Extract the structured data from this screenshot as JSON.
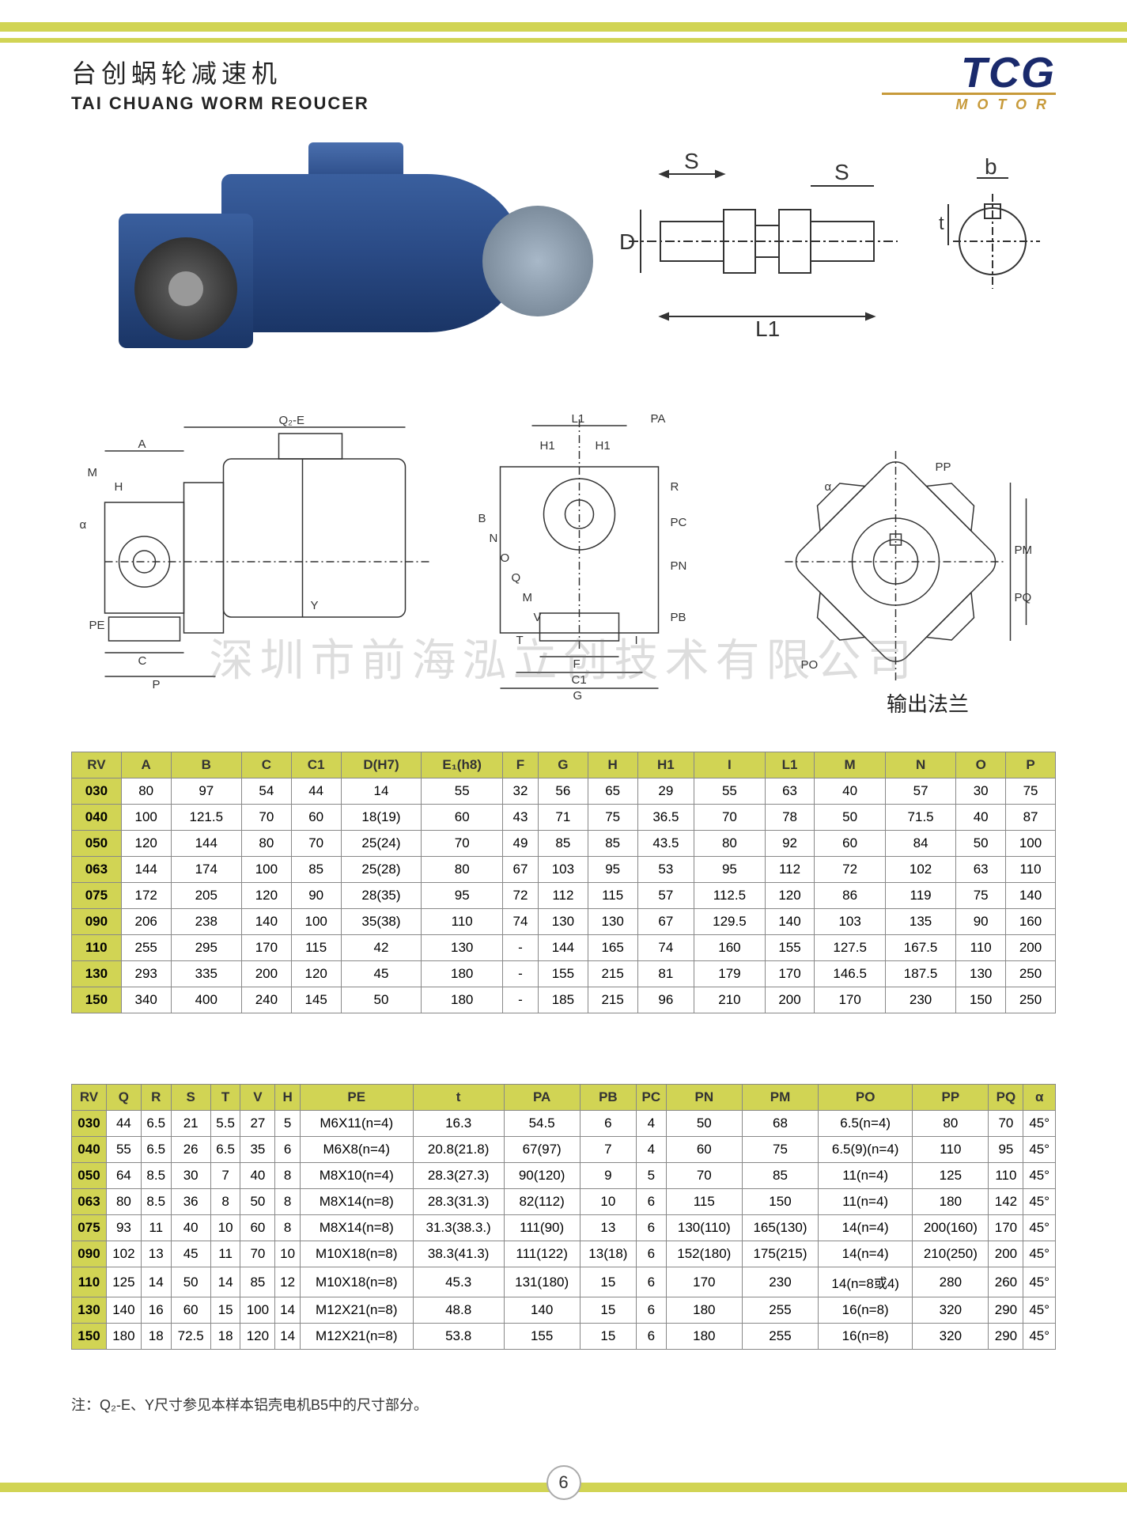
{
  "header": {
    "title_cn": "台创蜗轮减速机",
    "title_en": "TAI CHUANG WORM REOUCER",
    "logo_main": "TCG",
    "logo_sub": "MOTOR"
  },
  "colors": {
    "accent_yellow": "#d1d454",
    "logo_blue": "#1a2a6c",
    "logo_gold": "#c79a3a",
    "motor_blue": "#2a4a85",
    "border": "#888",
    "watermark": "rgba(120,120,120,0.25)"
  },
  "shaft_labels": {
    "S": "S",
    "D": "D",
    "L1": "L1",
    "b": "b",
    "t": "t"
  },
  "drawing_labels": {
    "Q2E": "Q₂-E",
    "A": "A",
    "M": "M",
    "H": "H",
    "Y": "Y",
    "PE": "PE",
    "C": "C",
    "P": "P",
    "alpha": "α",
    "L1": "L1",
    "PA": "PA",
    "H1": "H1",
    "R": "R",
    "B": "B",
    "N": "N",
    "O": "O",
    "Q": "Q",
    "V": "V",
    "PB": "PB",
    "PC": "PC",
    "PN": "PN",
    "F": "F",
    "C1": "C1",
    "G": "G",
    "T": "T",
    "I": "I",
    "PP": "PP",
    "PM": "PM",
    "PQ": "PQ",
    "PO": "PO",
    "flange_label": "输出法兰"
  },
  "watermark": "深圳市前海泓立创技术有限公司",
  "table1": {
    "columns": [
      "RV",
      "A",
      "B",
      "C",
      "C1",
      "D(H7)",
      "E₁(h8)",
      "F",
      "G",
      "H",
      "H1",
      "I",
      "L1",
      "M",
      "N",
      "O",
      "P"
    ],
    "rows": [
      [
        "030",
        "80",
        "97",
        "54",
        "44",
        "14",
        "55",
        "32",
        "56",
        "65",
        "29",
        "55",
        "63",
        "40",
        "57",
        "30",
        "75"
      ],
      [
        "040",
        "100",
        "121.5",
        "70",
        "60",
        "18(19)",
        "60",
        "43",
        "71",
        "75",
        "36.5",
        "70",
        "78",
        "50",
        "71.5",
        "40",
        "87"
      ],
      [
        "050",
        "120",
        "144",
        "80",
        "70",
        "25(24)",
        "70",
        "49",
        "85",
        "85",
        "43.5",
        "80",
        "92",
        "60",
        "84",
        "50",
        "100"
      ],
      [
        "063",
        "144",
        "174",
        "100",
        "85",
        "25(28)",
        "80",
        "67",
        "103",
        "95",
        "53",
        "95",
        "112",
        "72",
        "102",
        "63",
        "110"
      ],
      [
        "075",
        "172",
        "205",
        "120",
        "90",
        "28(35)",
        "95",
        "72",
        "112",
        "115",
        "57",
        "112.5",
        "120",
        "86",
        "119",
        "75",
        "140"
      ],
      [
        "090",
        "206",
        "238",
        "140",
        "100",
        "35(38)",
        "110",
        "74",
        "130",
        "130",
        "67",
        "129.5",
        "140",
        "103",
        "135",
        "90",
        "160"
      ],
      [
        "110",
        "255",
        "295",
        "170",
        "115",
        "42",
        "130",
        "-",
        "144",
        "165",
        "74",
        "160",
        "155",
        "127.5",
        "167.5",
        "110",
        "200"
      ],
      [
        "130",
        "293",
        "335",
        "200",
        "120",
        "45",
        "180",
        "-",
        "155",
        "215",
        "81",
        "179",
        "170",
        "146.5",
        "187.5",
        "130",
        "250"
      ],
      [
        "150",
        "340",
        "400",
        "240",
        "145",
        "50",
        "180",
        "-",
        "185",
        "215",
        "96",
        "210",
        "200",
        "170",
        "230",
        "150",
        "250"
      ]
    ]
  },
  "table2": {
    "columns": [
      "RV",
      "Q",
      "R",
      "S",
      "T",
      "V",
      "H",
      "PE",
      "t",
      "PA",
      "PB",
      "PC",
      "PN",
      "PM",
      "PO",
      "PP",
      "PQ",
      "α"
    ],
    "rows": [
      [
        "030",
        "44",
        "6.5",
        "21",
        "5.5",
        "27",
        "5",
        "M6X11(n=4)",
        "16.3",
        "54.5",
        "6",
        "4",
        "50",
        "68",
        "6.5(n=4)",
        "80",
        "70",
        "45°"
      ],
      [
        "040",
        "55",
        "6.5",
        "26",
        "6.5",
        "35",
        "6",
        "M6X8(n=4)",
        "20.8(21.8)",
        "67(97)",
        "7",
        "4",
        "60",
        "75",
        "6.5(9)(n=4)",
        "110",
        "95",
        "45°"
      ],
      [
        "050",
        "64",
        "8.5",
        "30",
        "7",
        "40",
        "8",
        "M8X10(n=4)",
        "28.3(27.3)",
        "90(120)",
        "9",
        "5",
        "70",
        "85",
        "11(n=4)",
        "125",
        "110",
        "45°"
      ],
      [
        "063",
        "80",
        "8.5",
        "36",
        "8",
        "50",
        "8",
        "M8X14(n=8)",
        "28.3(31.3)",
        "82(112)",
        "10",
        "6",
        "115",
        "150",
        "11(n=4)",
        "180",
        "142",
        "45°"
      ],
      [
        "075",
        "93",
        "11",
        "40",
        "10",
        "60",
        "8",
        "M8X14(n=8)",
        "31.3(38.3.)",
        "111(90)",
        "13",
        "6",
        "130(110)",
        "165(130)",
        "14(n=4)",
        "200(160)",
        "170",
        "45°"
      ],
      [
        "090",
        "102",
        "13",
        "45",
        "11",
        "70",
        "10",
        "M10X18(n=8)",
        "38.3(41.3)",
        "111(122)",
        "13(18)",
        "6",
        "152(180)",
        "175(215)",
        "14(n=4)",
        "210(250)",
        "200",
        "45°"
      ],
      [
        "110",
        "125",
        "14",
        "50",
        "14",
        "85",
        "12",
        "M10X18(n=8)",
        "45.3",
        "131(180)",
        "15",
        "6",
        "170",
        "230",
        "14(n=8或4)",
        "280",
        "260",
        "45°"
      ],
      [
        "130",
        "140",
        "16",
        "60",
        "15",
        "100",
        "14",
        "M12X21(n=8)",
        "48.8",
        "140",
        "15",
        "6",
        "180",
        "255",
        "16(n=8)",
        "320",
        "290",
        "45°"
      ],
      [
        "150",
        "180",
        "18",
        "72.5",
        "18",
        "120",
        "14",
        "M12X21(n=8)",
        "53.8",
        "155",
        "15",
        "6",
        "180",
        "255",
        "16(n=8)",
        "320",
        "290",
        "45°"
      ]
    ]
  },
  "footnote": "注：Q₂-E、Y尺寸参见本样本铝壳电机B5中的尺寸部分。",
  "page_number": "6"
}
